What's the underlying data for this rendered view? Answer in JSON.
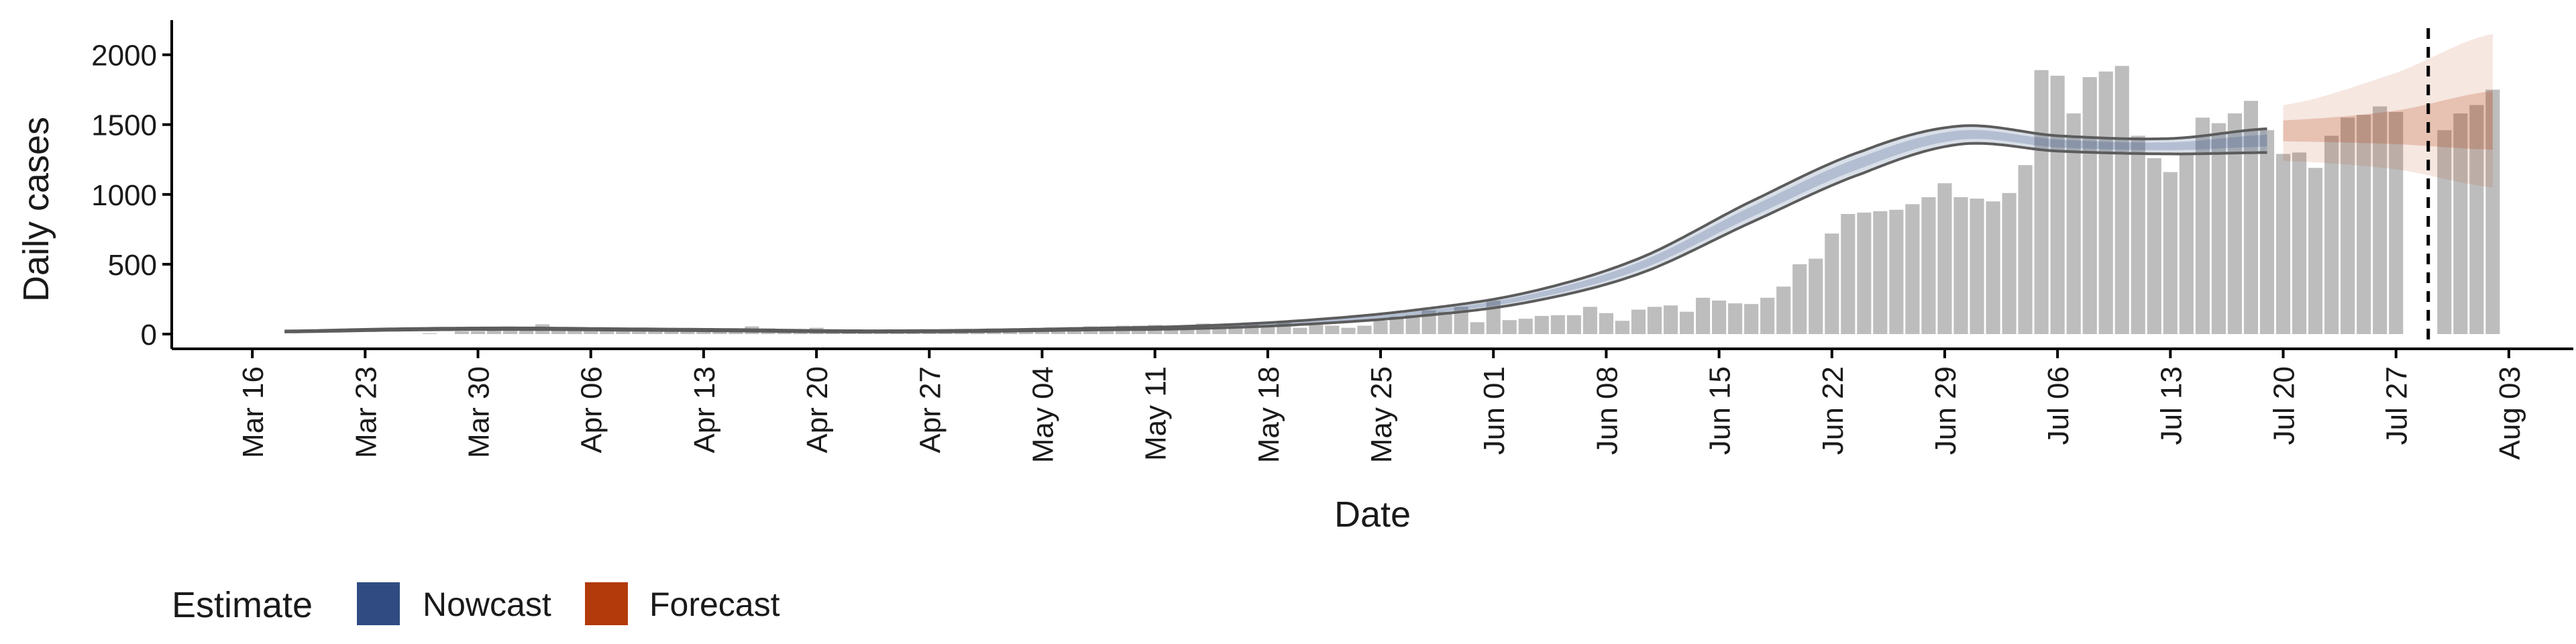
{
  "chart_data": {
    "type": "bar",
    "xlabel": "Date",
    "ylabel": "Daily cases",
    "ylim": [
      0,
      2200
    ],
    "yticks": [
      0,
      500,
      1000,
      1500,
      2000
    ],
    "x_range": [
      "2020-03-11",
      "2020-08-07"
    ],
    "xticks": [
      {
        "date": "2020-03-16",
        "label": "Mar 16"
      },
      {
        "date": "2020-03-23",
        "label": "Mar 23"
      },
      {
        "date": "2020-03-30",
        "label": "Mar 30"
      },
      {
        "date": "2020-04-06",
        "label": "Apr 06"
      },
      {
        "date": "2020-04-13",
        "label": "Apr 13"
      },
      {
        "date": "2020-04-20",
        "label": "Apr 20"
      },
      {
        "date": "2020-04-27",
        "label": "Apr 27"
      },
      {
        "date": "2020-05-04",
        "label": "May 04"
      },
      {
        "date": "2020-05-11",
        "label": "May 11"
      },
      {
        "date": "2020-05-18",
        "label": "May 18"
      },
      {
        "date": "2020-05-25",
        "label": "May 25"
      },
      {
        "date": "2020-06-01",
        "label": "Jun 01"
      },
      {
        "date": "2020-06-08",
        "label": "Jun 08"
      },
      {
        "date": "2020-06-15",
        "label": "Jun 15"
      },
      {
        "date": "2020-06-22",
        "label": "Jun 22"
      },
      {
        "date": "2020-06-29",
        "label": "Jun 29"
      },
      {
        "date": "2020-07-06",
        "label": "Jul 06"
      },
      {
        "date": "2020-07-13",
        "label": "Jul 13"
      },
      {
        "date": "2020-07-20",
        "label": "Jul 20"
      },
      {
        "date": "2020-07-27",
        "label": "Jul 27"
      },
      {
        "date": "2020-08-03",
        "label": "Aug 03"
      }
    ],
    "grid": false,
    "legend_position": "bottom-left",
    "legend": {
      "title": "Estimate",
      "items": [
        {
          "label": "Nowcast",
          "color": "#2f4b82"
        },
        {
          "label": "Forecast",
          "color": "#b33a0b"
        }
      ]
    },
    "bar_color": "#bdbdbd",
    "bars": {
      "start_date": "2020-03-16",
      "values": [
        0,
        0,
        0,
        0,
        0,
        0,
        0,
        0,
        0,
        0,
        0,
        5,
        0,
        20,
        20,
        25,
        30,
        35,
        70,
        40,
        45,
        40,
        40,
        45,
        35,
        30,
        25,
        30,
        25,
        20,
        35,
        55,
        40,
        30,
        20,
        45,
        15,
        10,
        15,
        20,
        20,
        25,
        30,
        25,
        30,
        35,
        40,
        35,
        35,
        40,
        45,
        50,
        55,
        55,
        60,
        60,
        65,
        60,
        65,
        75,
        70,
        60,
        75,
        60,
        80,
        45,
        65,
        60,
        45,
        60,
        95,
        125,
        135,
        170,
        160,
        195,
        85,
        240,
        100,
        110,
        130,
        135,
        135,
        195,
        150,
        95,
        175,
        195,
        205,
        160,
        260,
        240,
        220,
        215,
        260,
        340,
        500,
        540,
        720,
        860,
        870,
        880,
        890,
        930,
        980,
        1080,
        980,
        970,
        950,
        1010,
        1210,
        1890,
        1850,
        1580,
        1840,
        1880,
        1920,
        1420,
        1260,
        1160,
        1290,
        1550,
        1510,
        1580,
        1670,
        1460,
        1290,
        1300,
        1190,
        1420,
        1550,
        1570,
        1630,
        1590,
        null,
        null,
        1460,
        1580,
        1640,
        1750
      ]
    },
    "vertical_line": {
      "date": "2020-07-29",
      "style": "dashed"
    },
    "series": [
      {
        "name": "Nowcast",
        "color": "#2f4b82",
        "x_start": "2020-03-18",
        "x_end": "2020-07-19",
        "knots": [
          {
            "date": "2020-03-18",
            "lo": 15,
            "mid": 18,
            "hi": 22
          },
          {
            "date": "2020-03-25",
            "lo": 28,
            "mid": 33,
            "hi": 38
          },
          {
            "date": "2020-04-01",
            "lo": 33,
            "mid": 38,
            "hi": 44
          },
          {
            "date": "2020-04-08",
            "lo": 28,
            "mid": 33,
            "hi": 38
          },
          {
            "date": "2020-04-15",
            "lo": 22,
            "mid": 27,
            "hi": 32
          },
          {
            "date": "2020-04-22",
            "lo": 15,
            "mid": 19,
            "hi": 24
          },
          {
            "date": "2020-04-29",
            "lo": 17,
            "mid": 22,
            "hi": 27
          },
          {
            "date": "2020-05-06",
            "lo": 28,
            "mid": 34,
            "hi": 40
          },
          {
            "date": "2020-05-13",
            "lo": 38,
            "mid": 47,
            "hi": 56
          },
          {
            "date": "2020-05-20",
            "lo": 68,
            "mid": 82,
            "hi": 96
          },
          {
            "date": "2020-05-27",
            "lo": 125,
            "mid": 148,
            "hi": 170
          },
          {
            "date": "2020-06-03",
            "lo": 225,
            "mid": 260,
            "hi": 295
          },
          {
            "date": "2020-06-10",
            "lo": 430,
            "mid": 485,
            "hi": 540
          },
          {
            "date": "2020-06-17",
            "lo": 800,
            "mid": 875,
            "hi": 950
          },
          {
            "date": "2020-06-24",
            "lo": 1155,
            "mid": 1235,
            "hi": 1315
          },
          {
            "date": "2020-06-30",
            "lo": 1360,
            "mid": 1425,
            "hi": 1490
          },
          {
            "date": "2020-07-06",
            "lo": 1310,
            "mid": 1365,
            "hi": 1420
          },
          {
            "date": "2020-07-13",
            "lo": 1290,
            "mid": 1345,
            "hi": 1400
          },
          {
            "date": "2020-07-19",
            "lo": 1300,
            "mid": 1385,
            "hi": 1470
          }
        ]
      },
      {
        "name": "Forecast",
        "color": "#b33a0b",
        "x_start": "2020-07-20",
        "x_end": "2020-08-02",
        "knots": [
          {
            "date": "2020-07-20",
            "lo90": 1240,
            "lo": 1380,
            "mid": 1450,
            "hi": 1530,
            "hi90": 1640
          },
          {
            "date": "2020-07-27",
            "lo90": 1180,
            "lo": 1360,
            "mid": 1480,
            "hi": 1600,
            "hi90": 1870
          },
          {
            "date": "2020-08-02",
            "lo90": 1050,
            "lo": 1320,
            "mid": 1520,
            "hi": 1740,
            "hi90": 2150
          }
        ]
      }
    ]
  }
}
